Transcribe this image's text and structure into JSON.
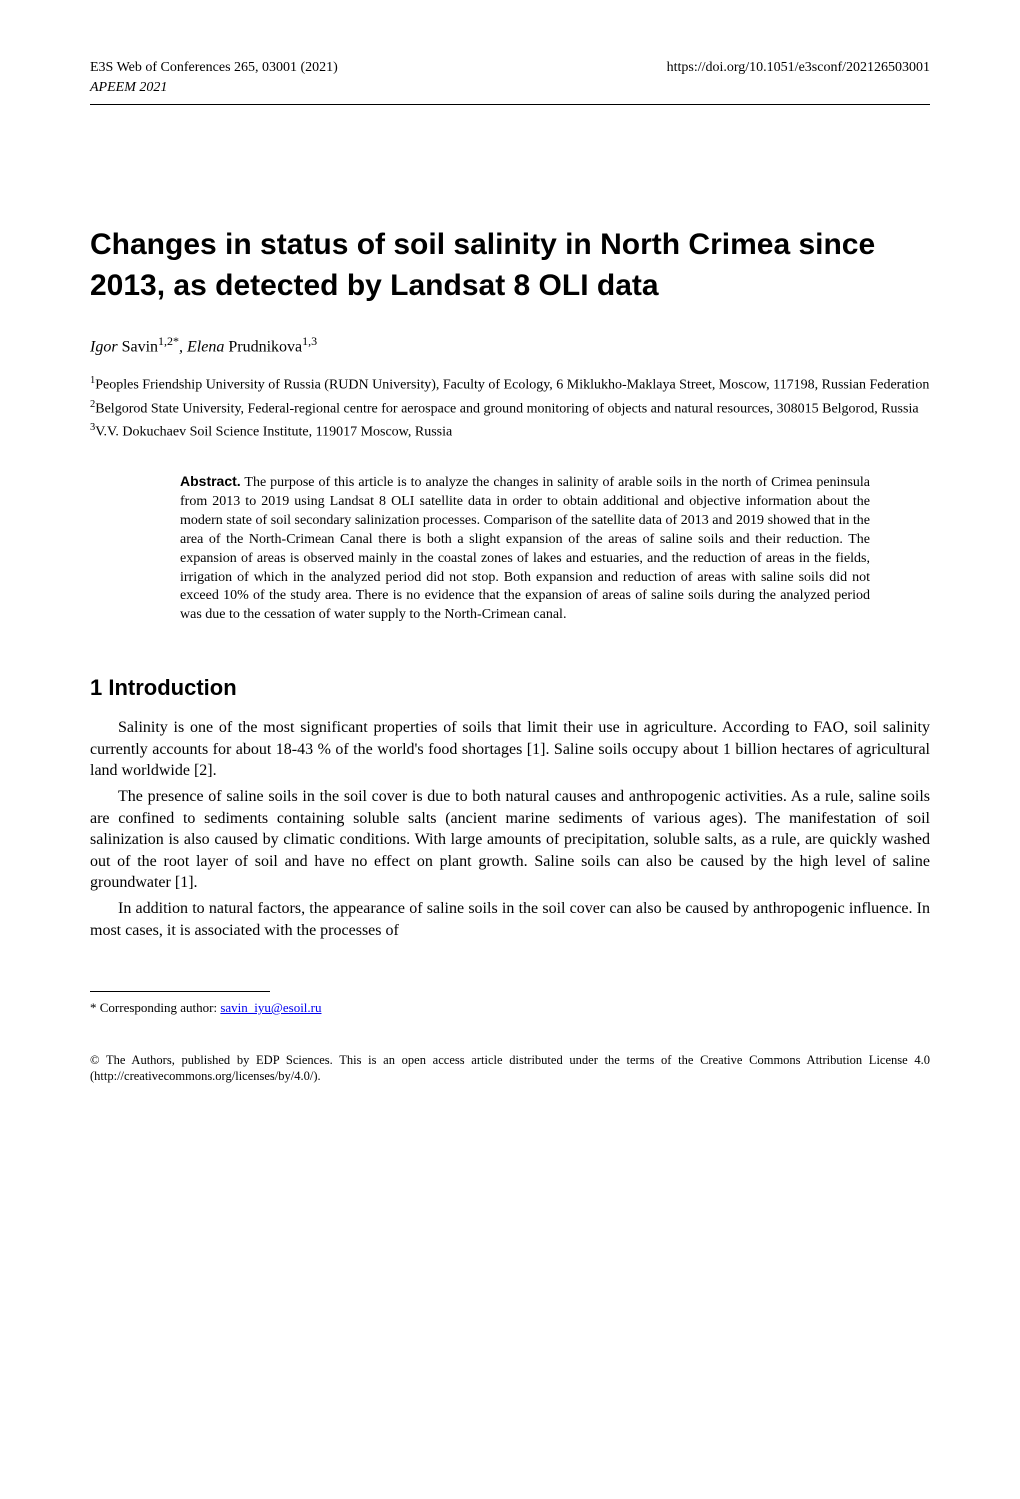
{
  "header": {
    "journal_line": "E3S Web of Conferences 265, 03001 (2021)",
    "doi": "https://doi.org/10.1051/e3sconf/202126503001",
    "conference": "APEEM 2021"
  },
  "title": "Changes in status of soil salinity in North Crimea since 2013, as detected by Landsat 8 OLI data",
  "authors": {
    "a1_first": "Igor",
    "a1_last": " Savin",
    "a1_sup": "1,2*",
    "sep": ", ",
    "a2_first": "Elena",
    "a2_last": " Prudnikova",
    "a2_sup": "1,3"
  },
  "affiliations": {
    "aff1": "Peoples Friendship University of Russia (RUDN University), Faculty of Ecology, 6 Miklukho-Maklaya Street, Moscow, 117198, Russian Federation",
    "aff2": "Belgorod State University, Federal-regional centre for aerospace and ground monitoring of objects and natural resources, 308015 Belgorod, Russia",
    "aff3": "V.V. Dokuchaev Soil Science Institute, 119017 Moscow, Russia"
  },
  "abstract": {
    "label": "Abstract.",
    "text": " The purpose of this article is to analyze the changes in salinity of arable soils in the north of Crimea peninsula from 2013 to 2019 using Landsat 8 OLI satellite data in order to obtain additional and objective information about the modern state of soil secondary salinization processes. Comparison of the satellite data of 2013 and 2019 showed that in the area of the North-Crimean Canal there is both a slight expansion of the areas of saline soils and their reduction. The expansion of areas is observed mainly in the coastal zones of lakes and estuaries, and the reduction of areas in the fields, irrigation of which in the analyzed period did not stop. Both expansion and reduction of areas with saline soils did not exceed 10% of the study area. There is no evidence that the expansion of areas of saline soils during the analyzed period was due to the cessation of water supply to the North-Crimean canal."
  },
  "section1": {
    "heading": "1 Introduction",
    "p1": "Salinity is one of the most significant properties of soils that limit their use in agriculture. According to FAO, soil salinity currently accounts for about 18-43 % of the world's food shortages [1]. Saline soils occupy about 1 billion hectares of agricultural land worldwide [2].",
    "p2": "The presence of saline soils in the soil cover is due to both natural causes and anthropogenic activities. As a rule, saline soils are confined to sediments containing soluble salts (ancient marine sediments of various ages). The manifestation of soil salinization is also caused by climatic conditions. With large amounts of precipitation, soluble salts, as a rule, are quickly washed out of the root layer of soil and have no effect on plant growth. Saline soils can also be caused by the high level of saline groundwater [1].",
    "p3": "In addition to natural factors, the appearance of saline soils in the soil cover can also be caused by anthropogenic influence. In most cases, it is associated with the processes of"
  },
  "footnote": {
    "marker": "*",
    "label": " Corresponding author: ",
    "email": "savin_iyu@esoil.ru"
  },
  "license": "© The Authors, published by EDP Sciences. This is an open access article distributed under the terms of the Creative Commons Attribution License 4.0 (http://creativecommons.org/licenses/by/4.0/)."
}
